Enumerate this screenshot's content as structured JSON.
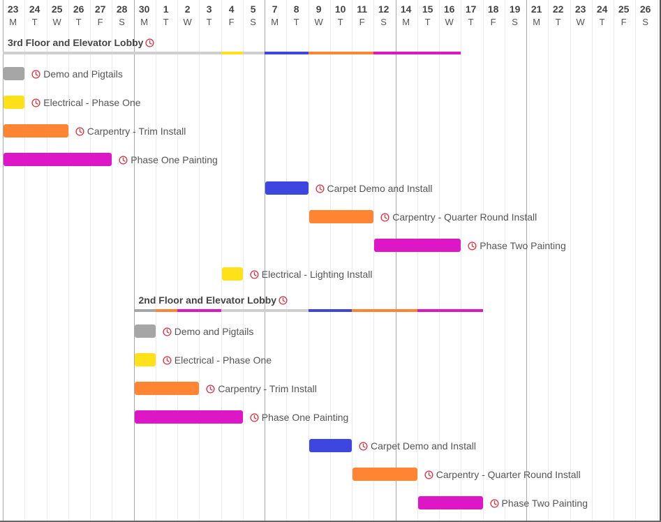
{
  "timeline": {
    "days": [
      {
        "num": "23",
        "dow": "M"
      },
      {
        "num": "24",
        "dow": "T"
      },
      {
        "num": "25",
        "dow": "W"
      },
      {
        "num": "26",
        "dow": "T"
      },
      {
        "num": "27",
        "dow": "F"
      },
      {
        "num": "28",
        "dow": "S"
      },
      {
        "num": "30",
        "dow": "M"
      },
      {
        "num": "1",
        "dow": "T"
      },
      {
        "num": "2",
        "dow": "W"
      },
      {
        "num": "3",
        "dow": "T"
      },
      {
        "num": "4",
        "dow": "F"
      },
      {
        "num": "5",
        "dow": "S"
      },
      {
        "num": "7",
        "dow": "M"
      },
      {
        "num": "8",
        "dow": "T"
      },
      {
        "num": "9",
        "dow": "W"
      },
      {
        "num": "10",
        "dow": "T"
      },
      {
        "num": "11",
        "dow": "F"
      },
      {
        "num": "12",
        "dow": "S"
      },
      {
        "num": "14",
        "dow": "M"
      },
      {
        "num": "15",
        "dow": "T"
      },
      {
        "num": "16",
        "dow": "W"
      },
      {
        "num": "17",
        "dow": "T"
      },
      {
        "num": "18",
        "dow": "F"
      },
      {
        "num": "19",
        "dow": "S"
      },
      {
        "num": "21",
        "dow": "M"
      },
      {
        "num": "22",
        "dow": "T"
      },
      {
        "num": "23",
        "dow": "W"
      },
      {
        "num": "24",
        "dow": "T"
      },
      {
        "num": "25",
        "dow": "F"
      },
      {
        "num": "26",
        "dow": "S"
      }
    ]
  },
  "colors": {
    "gray": "#a6a6a6",
    "yellow": "#ffe11a",
    "orange": "#ff8533",
    "magenta": "#dd17c5",
    "blue": "#3d47e0",
    "clock": "#d93a4a",
    "summary_base": "#cfcfcf"
  },
  "icons": {
    "task_status": "clock-icon"
  },
  "groups": [
    {
      "title": "3rd Floor and Elevator Lobby",
      "summary_start_day": 0,
      "summary_segments": [
        {
          "start_day": 10,
          "days": 1,
          "color": "yellow"
        },
        {
          "start_day": 12,
          "days": 2,
          "color": "blue"
        },
        {
          "start_day": 14,
          "days": 3,
          "color": "orange"
        },
        {
          "start_day": 17,
          "days": 4,
          "color": "magenta"
        }
      ],
      "tasks": [
        {
          "name": "Demo and Pigtails",
          "start_day": 0,
          "days": 1,
          "color": "gray"
        },
        {
          "name": "Electrical - Phase One",
          "start_day": 0,
          "days": 1,
          "color": "yellow"
        },
        {
          "name": "Carpentry - Trim Install",
          "start_day": 0,
          "days": 3,
          "color": "orange"
        },
        {
          "name": "Phase One Painting",
          "start_day": 0,
          "days": 5,
          "color": "magenta"
        },
        {
          "name": "Carpet Demo and Install",
          "start_day": 12,
          "days": 2,
          "color": "blue"
        },
        {
          "name": "Carpentry - Quarter Round Install",
          "start_day": 14,
          "days": 3,
          "color": "orange"
        },
        {
          "name": "Phase Two Painting",
          "start_day": 17,
          "days": 4,
          "color": "magenta"
        },
        {
          "name": "Electrical - Lighting Install",
          "start_day": 10,
          "days": 1,
          "color": "yellow"
        }
      ]
    },
    {
      "title": "2nd Floor and Elevator Lobby",
      "summary_start_day": 6,
      "summary_segments": [
        {
          "start_day": 6,
          "days": 1,
          "color": "gray"
        },
        {
          "start_day": 7,
          "days": 1,
          "color": "orange"
        },
        {
          "start_day": 8,
          "days": 2,
          "color": "magenta"
        },
        {
          "start_day": 14,
          "days": 2,
          "color": "blue"
        },
        {
          "start_day": 16,
          "days": 3,
          "color": "orange"
        },
        {
          "start_day": 19,
          "days": 3,
          "color": "magenta"
        }
      ],
      "tasks": [
        {
          "name": "Demo and Pigtails",
          "start_day": 6,
          "days": 1,
          "color": "gray"
        },
        {
          "name": "Electrical - Phase One",
          "start_day": 6,
          "days": 1,
          "color": "yellow"
        },
        {
          "name": "Carpentry - Trim Install",
          "start_day": 6,
          "days": 3,
          "color": "orange"
        },
        {
          "name": "Phase One Painting",
          "start_day": 6,
          "days": 5,
          "color": "magenta"
        },
        {
          "name": "Carpet Demo and Install",
          "start_day": 14,
          "days": 2,
          "color": "blue"
        },
        {
          "name": "Carpentry - Quarter Round Install",
          "start_day": 16,
          "days": 3,
          "color": "orange"
        },
        {
          "name": "Phase Two Painting",
          "start_day": 19,
          "days": 3,
          "color": "magenta"
        }
      ]
    }
  ]
}
